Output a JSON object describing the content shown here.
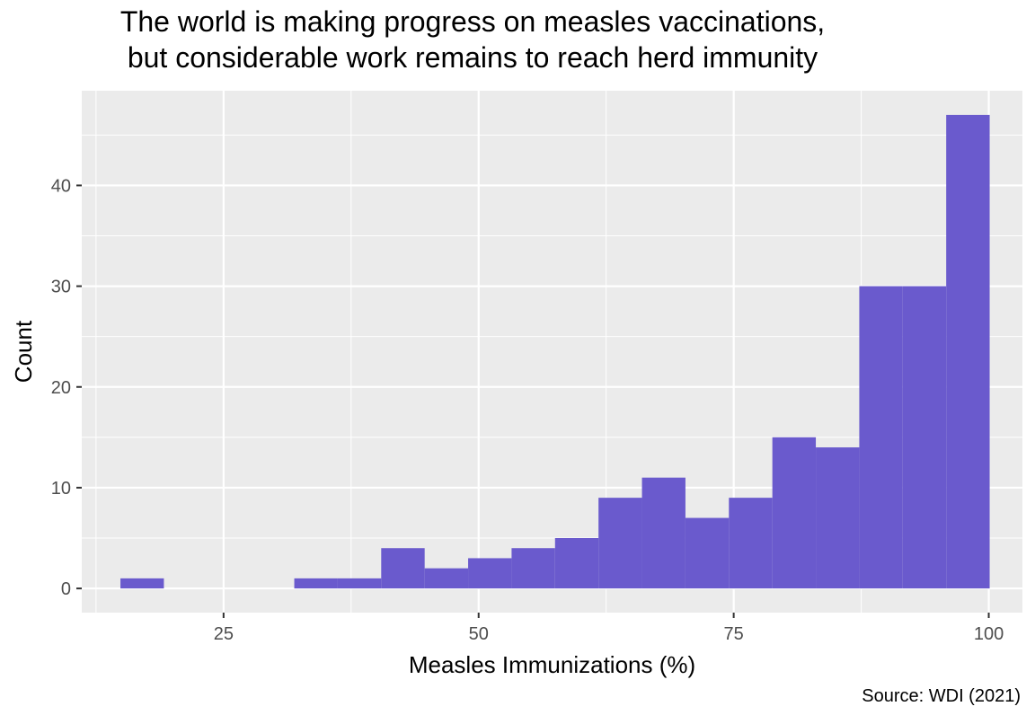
{
  "chart_data": {
    "type": "bar",
    "title_lines": [
      "The world is making progress on measles vaccinations,",
      "but considerable work remains to reach herd immunity"
    ],
    "xlabel": "Measles Immunizations (%)",
    "ylabel": "Count",
    "caption": "Source: WDI (2021)",
    "bar_color": "#6a5acd",
    "panel_background": "#ebebeb",
    "grid_color": "#ffffff",
    "grid": true,
    "legend": "none",
    "xlim": [
      11.1,
      103.3
    ],
    "ylim": [
      -2.4,
      49.4
    ],
    "x_ticks": [
      25,
      50,
      75,
      100
    ],
    "y_ticks": [
      0,
      10,
      20,
      30,
      40
    ],
    "bin_width": 4.26,
    "bins": [
      {
        "x_start": 14.89,
        "count": 1
      },
      {
        "x_start": 19.15,
        "count": 0
      },
      {
        "x_start": 23.41,
        "count": 0
      },
      {
        "x_start": 27.67,
        "count": 0
      },
      {
        "x_start": 31.93,
        "count": 1
      },
      {
        "x_start": 36.19,
        "count": 1
      },
      {
        "x_start": 40.45,
        "count": 4
      },
      {
        "x_start": 44.71,
        "count": 2
      },
      {
        "x_start": 48.97,
        "count": 3
      },
      {
        "x_start": 53.23,
        "count": 4
      },
      {
        "x_start": 57.49,
        "count": 5
      },
      {
        "x_start": 61.75,
        "count": 9
      },
      {
        "x_start": 66.01,
        "count": 11
      },
      {
        "x_start": 70.27,
        "count": 7
      },
      {
        "x_start": 74.53,
        "count": 9
      },
      {
        "x_start": 78.79,
        "count": 15
      },
      {
        "x_start": 83.05,
        "count": 14
      },
      {
        "x_start": 87.31,
        "count": 30
      },
      {
        "x_start": 91.57,
        "count": 30
      },
      {
        "x_start": 95.83,
        "count": 47
      }
    ]
  }
}
